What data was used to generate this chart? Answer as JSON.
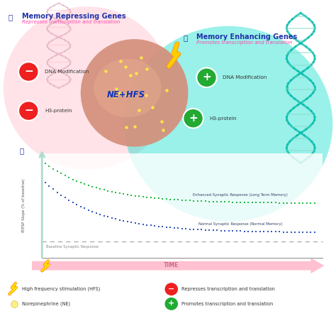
{
  "bg_color": "#ffffff",
  "title_A": "Memory Repressing Genes",
  "subtitle_A": "Represses transcription and translation",
  "title_B": "Memory Enhancing Genes",
  "subtitle_B": "Promotes transcription and translation",
  "label_NE_HFS": "NE+HFS",
  "ylabel": "fEPSP Slope (% of baseline)",
  "baseline_label": "Baseline Synaptic Response",
  "enhanced_label": "Enhanced Synaptic Response (Long Term Memory)",
  "normal_label": "Normal Synaptic Response (Normal Memory)",
  "dna_mod_left": "DNA Modification",
  "h3_left": "H3-protein",
  "dna_mod_right": "DNA Modification",
  "h3_right": "H3-protein",
  "green_dot_color": "#22bb44",
  "blue_dot_color": "#3355bb",
  "legend_hfs": "High frequency stimulation (HFS)",
  "legend_ne": "Norepinephrine (NE)",
  "legend_represses": "Represses transcription and translation",
  "legend_promotes": "Promotes transcription and translation",
  "pink_bg": "#ffccd8",
  "cyan_bg": "#00ddc8",
  "brain_color": "#dda080",
  "dna_right_color": "#00bbaa",
  "dna_left_color": "#ffaacc",
  "label_color_A": "#2233aa",
  "label_color_B": "#2233aa",
  "subtitle_color": "#ff44aa",
  "time_arrow_color": "#ffb6cc",
  "time_text_color": "#cc6688",
  "axis_arrow_color": "#aaddcc",
  "minus_color": "#ee2222",
  "plus_color": "#22aa44"
}
